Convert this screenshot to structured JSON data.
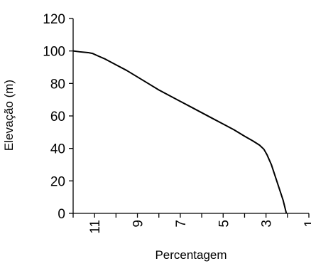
{
  "chart_data": {
    "type": "line",
    "title": "",
    "xlabel": "Percentagem",
    "ylabel": "Elevação (m)",
    "xlim": [
      12,
      1
    ],
    "ylim": [
      0,
      120
    ],
    "x_reversed": true,
    "x_tick_label_rotation": -90,
    "x_ticks": [
      11,
      9,
      7,
      5,
      3,
      1
    ],
    "y_ticks": [
      0,
      20,
      40,
      60,
      80,
      100,
      120
    ],
    "grid": false,
    "legend": "none",
    "line_color": "#000000",
    "series": [
      {
        "x": [
          12.0,
          11.7,
          11.3,
          11.1,
          10.85,
          10.5,
          10.0,
          9.5,
          9.0,
          8.5,
          8.0,
          7.5,
          7.0,
          6.5,
          6.0,
          5.5,
          5.0,
          4.5,
          4.0,
          3.6,
          3.3,
          3.1,
          2.95,
          2.75,
          2.5,
          2.2,
          2.05
        ],
        "y": [
          100,
          99.5,
          99,
          98.5,
          97,
          95,
          91.5,
          88,
          84,
          80,
          76,
          72.5,
          69,
          65.5,
          62,
          58.5,
          55,
          51.5,
          47.5,
          44.5,
          42,
          39.5,
          36,
          30,
          20,
          8,
          0
        ]
      }
    ]
  }
}
